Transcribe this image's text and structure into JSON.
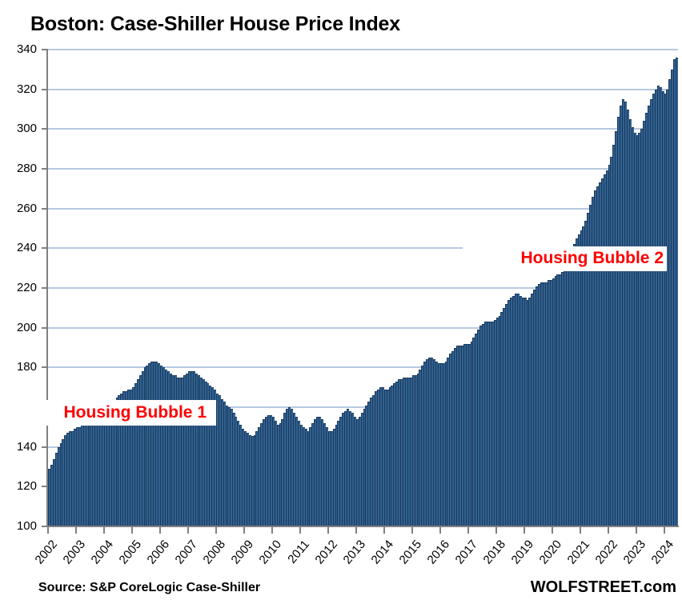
{
  "page": {
    "title": "Boston: Case-Shiller House Price Index",
    "source_note": "Source: S&P CoreLogic Case-Shiller",
    "watermark": "WOLFSTREET.com"
  },
  "chart_data": {
    "type": "bar",
    "title": "Boston: Case-Shiller House Price Index",
    "frequency": "monthly",
    "x_start": "2002-01",
    "x_end": "2024-06",
    "xlabel": "",
    "ylabel": "",
    "ylim": [
      100,
      340
    ],
    "grid": "horizontal",
    "y_tick_labels": [
      "340",
      "320",
      "300",
      "280",
      "260",
      "240",
      "220",
      "200",
      "180",
      "160",
      "140",
      "120",
      "100"
    ],
    "x_tick_labels": [
      "2002",
      "2003",
      "2004",
      "2005",
      "2006",
      "2007",
      "2008",
      "2009",
      "2010",
      "2011",
      "2012",
      "2013",
      "2014",
      "2015",
      "2016",
      "2017",
      "2018",
      "2019",
      "2020",
      "2021",
      "2022",
      "2023",
      "2024"
    ],
    "values": [
      129,
      131,
      134,
      137,
      140,
      142,
      144,
      146,
      147,
      148,
      148,
      149,
      150,
      150,
      151,
      152,
      153,
      154,
      155,
      156,
      157,
      157,
      158,
      158,
      158,
      159,
      160,
      162,
      163,
      165,
      166,
      167,
      168,
      168,
      169,
      169,
      170,
      172,
      174,
      176,
      178,
      180,
      181,
      182,
      183,
      183,
      183,
      182,
      181,
      180,
      179,
      178,
      177,
      176,
      176,
      175,
      175,
      175,
      176,
      177,
      178,
      178,
      178,
      177,
      176,
      175,
      174,
      173,
      172,
      171,
      170,
      169,
      167,
      166,
      164,
      163,
      161,
      160,
      159,
      157,
      155,
      153,
      151,
      149,
      148,
      147,
      146,
      145.5,
      146,
      148,
      150,
      152,
      154,
      155,
      156,
      156,
      155,
      153,
      151,
      152,
      154,
      157,
      159,
      160,
      159,
      157,
      155,
      153,
      151,
      150,
      149,
      148,
      150,
      152,
      154,
      155,
      155,
      154,
      152,
      150,
      148,
      148,
      149,
      151,
      153,
      155,
      157,
      158,
      159,
      158,
      157,
      155,
      154,
      155,
      157,
      159,
      161,
      163,
      165,
      166,
      168,
      169,
      170,
      170,
      169,
      169,
      170,
      171,
      172,
      173,
      174,
      174,
      175,
      175,
      175,
      175,
      176,
      176,
      177,
      179,
      181,
      183,
      184,
      185,
      185,
      184,
      183,
      182,
      182,
      182,
      183,
      185,
      187,
      188,
      190,
      191,
      191,
      191,
      192,
      192,
      192,
      193,
      195,
      197,
      199,
      201,
      202,
      203,
      203,
      203,
      203,
      204,
      205,
      206,
      208,
      210,
      212,
      214,
      215,
      216,
      217,
      217,
      216,
      215,
      215,
      214,
      215,
      217,
      219,
      221,
      222,
      223,
      223,
      223,
      224,
      224,
      225,
      226,
      227,
      227,
      228,
      230,
      233,
      236,
      239,
      242,
      245,
      247,
      249,
      251,
      254,
      258,
      262,
      266,
      269,
      271,
      273,
      275,
      277,
      279,
      282,
      286,
      292,
      299,
      306,
      312,
      315,
      314,
      310,
      305,
      301,
      298,
      297,
      298,
      300,
      304,
      308,
      312,
      315,
      318,
      320,
      322,
      321,
      319,
      318,
      320,
      325,
      330,
      335,
      336
    ],
    "annotations": [
      {
        "label": "Housing Bubble 1",
        "color": "#ff0000"
      },
      {
        "label": "Housing Bubble 2",
        "color": "#ff0000"
      }
    ],
    "colors": {
      "bar_fill": "#31618f",
      "bar_border": "#1b3a5f",
      "gridline": "#b7c9e2",
      "axis": "#808080",
      "annotation_text": "#ff0000",
      "annotation_bg": "#ffffff"
    }
  }
}
